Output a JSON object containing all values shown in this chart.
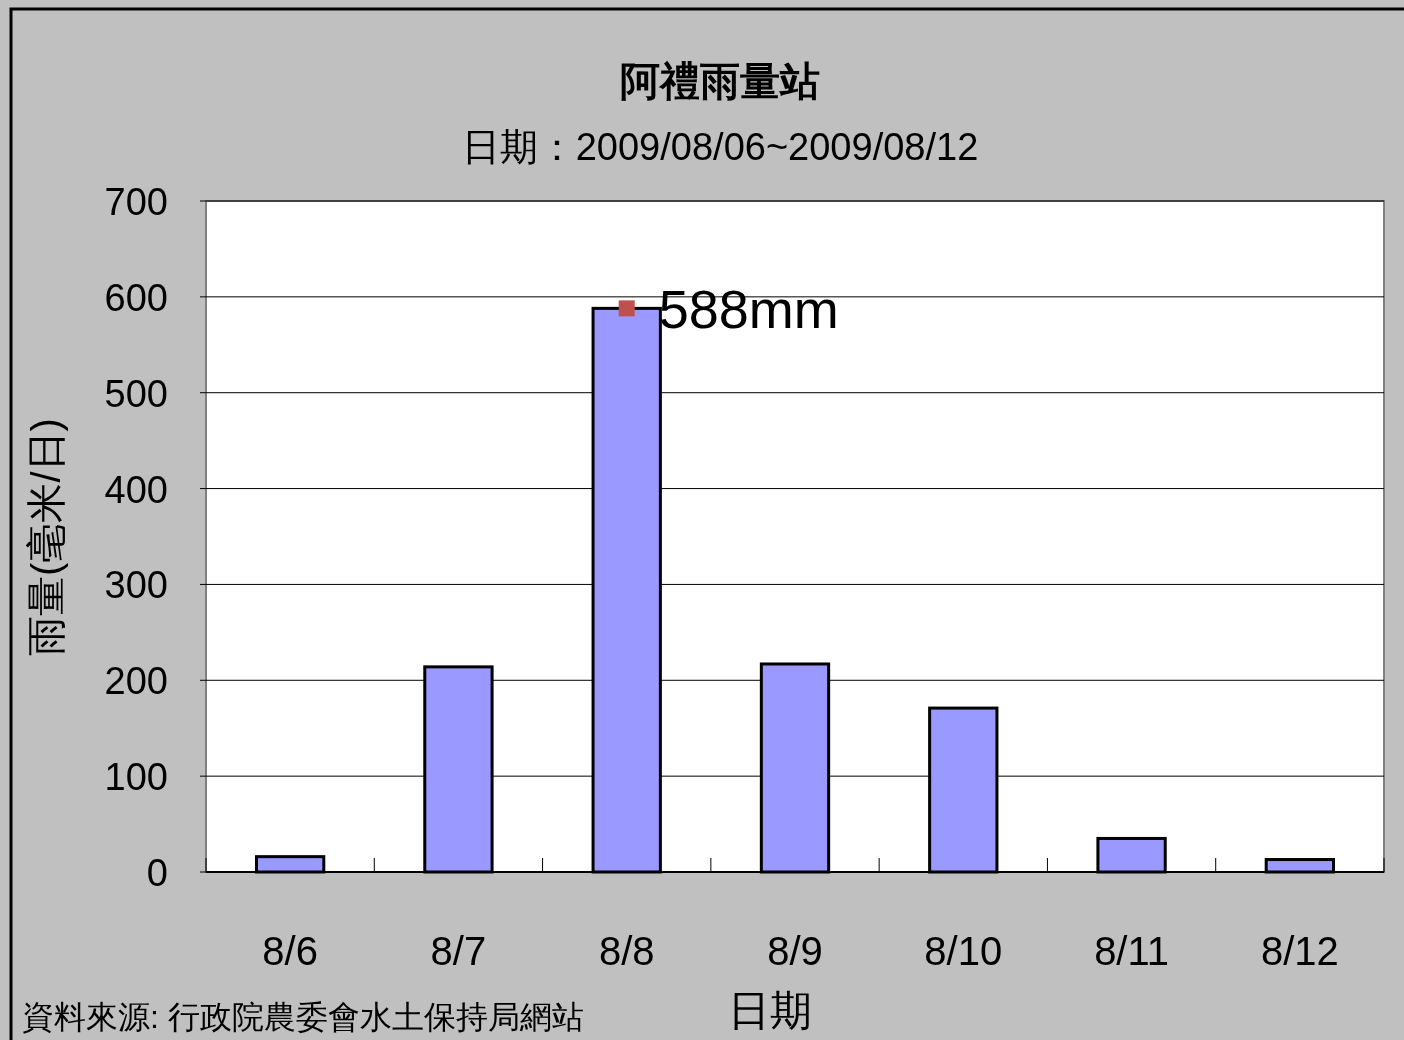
{
  "chart_data": {
    "type": "bar",
    "title": "阿禮雨量站",
    "subtitle": "日期：2009/08/06~2009/08/12",
    "xlabel": "日期",
    "ylabel": "雨量(毫米/日)",
    "categories": [
      "8/6",
      "8/7",
      "8/8",
      "8/9",
      "8/10",
      "8/11",
      "8/12"
    ],
    "series": [
      {
        "color": "#9999ff",
        "values": [
          16,
          214,
          588,
          217,
          171,
          35,
          13
        ]
      },
      {
        "type": "scatter",
        "color": "#c0504d",
        "marker": "square",
        "x": [
          "8/8"
        ],
        "values": [
          588
        ]
      }
    ],
    "ylim": [
      0,
      700
    ],
    "yticks": [
      0,
      100,
      200,
      300,
      400,
      500,
      600,
      700
    ],
    "grid": "y",
    "annotations": [
      {
        "text": "588mm",
        "x": "8/8",
        "y": 588
      },
      "資料來源: 行政院農委會水土保持局網站"
    ]
  }
}
